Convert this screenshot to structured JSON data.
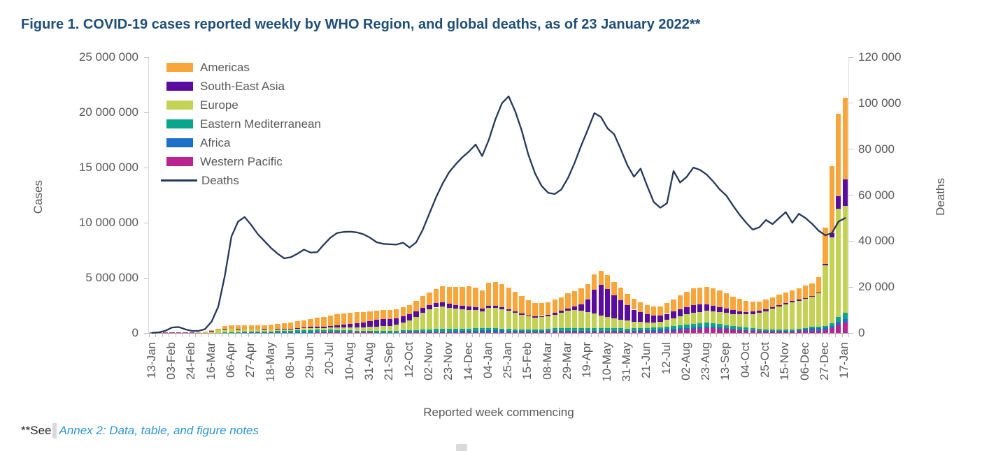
{
  "title": "Figure 1. COVID-19 cases reported weekly by WHO Region, and global deaths, as of 23 January 2022**",
  "footer": {
    "prefix": "**See",
    "link": "Annex 2: Data, table, and figure notes"
  },
  "colors": {
    "title_blue": "#1F4E79",
    "axis_text_gray": "#595959",
    "link_blue": "#2E96D0",
    "americas": "#F8A63C",
    "south_east_asia": "#5A0CA0",
    "europe": "#C3D255",
    "eastern_mediterranean": "#09A58C",
    "africa": "#1B6FC8",
    "western_pacific": "#BB2390",
    "deaths_line": "#24385B"
  },
  "chart_data": {
    "type": "combo-stacked-bar-line",
    "xlabel": "Reported week commencing",
    "ylabel_left": "Cases",
    "ylabel_right": "Deaths",
    "y_left": {
      "min": 0,
      "max": 25000000,
      "tick_labels": [
        "0",
        "5 000 000",
        "10 000 000",
        "15 000 000",
        "20 000 000",
        "25 000 000"
      ]
    },
    "y_right": {
      "min": 0,
      "max": 120000,
      "tick_labels": [
        "0",
        "20 000",
        "40 000",
        "60 000",
        "80 000",
        "100 000",
        "120 000"
      ]
    },
    "x_tick_labels": [
      "13-Jan",
      "03-Feb",
      "24-Feb",
      "16-Mar",
      "06-Apr",
      "27-Apr",
      "18-May",
      "08-Jun",
      "29-Jun",
      "20-Jul",
      "10-Aug",
      "31-Aug",
      "21-Sep",
      "12-Oct",
      "02-Nov",
      "23-Nov",
      "14-Dec",
      "04-Jan",
      "25-Jan",
      "15-Feb",
      "08-Mar",
      "29-Mar",
      "19-Apr",
      "10-May",
      "31-May",
      "21-Jun",
      "12-Jul",
      "02-Aug",
      "23-Aug",
      "13-Sep",
      "04-Oct",
      "25-Oct",
      "15-Nov",
      "06-Dec",
      "27-Dec",
      "17-Jan"
    ],
    "weeks_per_label": 3,
    "n_weeks": 106,
    "cases_unit": "millions of cases per week",
    "stack_order_bottom_to_top": [
      "western_pacific",
      "africa",
      "eastern_mediterranean",
      "europe",
      "south_east_asia",
      "americas"
    ],
    "series": [
      {
        "key": "americas",
        "name": "Americas",
        "color": "#F8A63C",
        "values": [
          0,
          0,
          0,
          0,
          0,
          0,
          0,
          0.01,
          0.02,
          0.05,
          0.12,
          0.25,
          0.3,
          0.33,
          0.35,
          0.36,
          0.35,
          0.37,
          0.4,
          0.45,
          0.5,
          0.55,
          0.6,
          0.65,
          0.73,
          0.8,
          0.88,
          0.95,
          1.0,
          1.02,
          1.05,
          1.0,
          0.95,
          0.9,
          0.85,
          0.82,
          0.8,
          0.82,
          0.85,
          0.88,
          0.95,
          1.05,
          1.15,
          1.3,
          1.45,
          1.55,
          1.65,
          1.75,
          1.85,
          1.8,
          1.7,
          2.1,
          2.15,
          2.1,
          1.95,
          1.75,
          1.55,
          1.35,
          1.2,
          1.15,
          1.15,
          1.2,
          1.25,
          1.35,
          1.4,
          1.45,
          1.4,
          1.35,
          1.3,
          1.25,
          1.2,
          1.15,
          1.05,
          0.95,
          0.9,
          0.85,
          0.8,
          0.85,
          0.95,
          1.1,
          1.25,
          1.4,
          1.5,
          1.55,
          1.55,
          1.55,
          1.5,
          1.4,
          1.25,
          1.1,
          1.0,
          0.9,
          0.85,
          0.85,
          0.85,
          0.9,
          0.95,
          1.0,
          1.05,
          1.1,
          1.15,
          1.4,
          3.3,
          6.1,
          7.5,
          7.4
        ]
      },
      {
        "key": "south_east_asia",
        "name": "South-East Asia",
        "color": "#5A0CA0",
        "values": [
          0,
          0,
          0,
          0,
          0,
          0,
          0,
          0,
          0,
          0.01,
          0.01,
          0.02,
          0.02,
          0.02,
          0.02,
          0.03,
          0.03,
          0.04,
          0.04,
          0.05,
          0.06,
          0.07,
          0.08,
          0.09,
          0.1,
          0.12,
          0.14,
          0.17,
          0.2,
          0.25,
          0.32,
          0.4,
          0.47,
          0.55,
          0.62,
          0.65,
          0.62,
          0.58,
          0.55,
          0.52,
          0.48,
          0.45,
          0.42,
          0.4,
          0.38,
          0.35,
          0.33,
          0.3,
          0.28,
          0.25,
          0.22,
          0.2,
          0.18,
          0.16,
          0.15,
          0.13,
          0.12,
          0.11,
          0.11,
          0.11,
          0.12,
          0.14,
          0.16,
          0.22,
          0.35,
          0.55,
          1.1,
          2.2,
          2.75,
          2.55,
          2.1,
          1.75,
          1.4,
          1.1,
          0.9,
          0.75,
          0.62,
          0.55,
          0.55,
          0.58,
          0.62,
          0.68,
          0.7,
          0.65,
          0.58,
          0.5,
          0.44,
          0.38,
          0.33,
          0.28,
          0.25,
          0.22,
          0.2,
          0.18,
          0.16,
          0.15,
          0.14,
          0.13,
          0.12,
          0.11,
          0.1,
          0.1,
          0.13,
          0.35,
          1.15,
          2.4
        ]
      },
      {
        "key": "europe",
        "name": "Europe",
        "color": "#C3D255",
        "values": [
          0,
          0,
          0,
          0,
          0,
          0,
          0,
          0.01,
          0.04,
          0.15,
          0.22,
          0.28,
          0.28,
          0.25,
          0.22,
          0.2,
          0.18,
          0.17,
          0.16,
          0.15,
          0.14,
          0.14,
          0.15,
          0.15,
          0.16,
          0.17,
          0.18,
          0.2,
          0.22,
          0.24,
          0.26,
          0.28,
          0.3,
          0.33,
          0.36,
          0.4,
          0.45,
          0.55,
          0.7,
          0.9,
          1.2,
          1.55,
          1.8,
          1.95,
          2.0,
          1.9,
          1.8,
          1.75,
          1.7,
          1.65,
          1.55,
          1.8,
          1.85,
          1.75,
          1.65,
          1.5,
          1.35,
          1.2,
          1.1,
          1.1,
          1.15,
          1.25,
          1.4,
          1.55,
          1.6,
          1.55,
          1.45,
          1.3,
          1.15,
          1.0,
          0.9,
          0.8,
          0.7,
          0.6,
          0.55,
          0.5,
          0.48,
          0.5,
          0.6,
          0.7,
          0.8,
          0.9,
          1.0,
          1.05,
          1.1,
          1.1,
          1.1,
          1.1,
          1.1,
          1.15,
          1.2,
          1.3,
          1.45,
          1.65,
          1.9,
          2.1,
          2.3,
          2.45,
          2.55,
          2.6,
          2.7,
          3.0,
          5.5,
          7.8,
          9.8,
          9.7
        ]
      },
      {
        "key": "eastern_mediterranean",
        "name": "Eastern Mediterranean",
        "color": "#09A58C",
        "values": [
          0,
          0,
          0,
          0,
          0,
          0,
          0,
          0,
          0,
          0.01,
          0.02,
          0.04,
          0.06,
          0.06,
          0.06,
          0.07,
          0.08,
          0.09,
          0.09,
          0.1,
          0.11,
          0.13,
          0.15,
          0.17,
          0.18,
          0.17,
          0.15,
          0.14,
          0.12,
          0.11,
          0.11,
          0.1,
          0.1,
          0.11,
          0.11,
          0.12,
          0.12,
          0.13,
          0.14,
          0.15,
          0.16,
          0.18,
          0.2,
          0.22,
          0.25,
          0.25,
          0.24,
          0.23,
          0.22,
          0.21,
          0.19,
          0.2,
          0.19,
          0.18,
          0.17,
          0.16,
          0.15,
          0.15,
          0.16,
          0.17,
          0.2,
          0.24,
          0.27,
          0.29,
          0.3,
          0.3,
          0.3,
          0.29,
          0.28,
          0.27,
          0.26,
          0.25,
          0.22,
          0.21,
          0.2,
          0.2,
          0.2,
          0.21,
          0.24,
          0.27,
          0.3,
          0.32,
          0.33,
          0.34,
          0.35,
          0.33,
          0.3,
          0.27,
          0.25,
          0.22,
          0.2,
          0.18,
          0.15,
          0.13,
          0.12,
          0.11,
          0.11,
          0.1,
          0.1,
          0.1,
          0.1,
          0.12,
          0.15,
          0.25,
          0.45,
          0.58
        ]
      },
      {
        "key": "africa",
        "name": "Africa",
        "color": "#1B6FC8",
        "values": [
          0,
          0,
          0,
          0,
          0,
          0,
          0,
          0,
          0,
          0,
          0,
          0.01,
          0.01,
          0.01,
          0.02,
          0.02,
          0.02,
          0.03,
          0.03,
          0.04,
          0.04,
          0.05,
          0.06,
          0.07,
          0.07,
          0.08,
          0.09,
          0.1,
          0.1,
          0.09,
          0.08,
          0.07,
          0.06,
          0.06,
          0.05,
          0.05,
          0.05,
          0.05,
          0.05,
          0.06,
          0.06,
          0.07,
          0.07,
          0.08,
          0.08,
          0.09,
          0.1,
          0.11,
          0.12,
          0.14,
          0.16,
          0.19,
          0.18,
          0.17,
          0.14,
          0.12,
          0.1,
          0.08,
          0.07,
          0.08,
          0.07,
          0.07,
          0.06,
          0.06,
          0.06,
          0.06,
          0.06,
          0.06,
          0.06,
          0.06,
          0.07,
          0.08,
          0.09,
          0.11,
          0.13,
          0.14,
          0.16,
          0.17,
          0.18,
          0.18,
          0.17,
          0.16,
          0.15,
          0.14,
          0.13,
          0.12,
          0.11,
          0.09,
          0.08,
          0.07,
          0.06,
          0.05,
          0.04,
          0.04,
          0.03,
          0.03,
          0.03,
          0.04,
          0.08,
          0.18,
          0.26,
          0.25,
          0.22,
          0.18,
          0.25,
          0.3
        ]
      },
      {
        "key": "western_pacific",
        "name": "Western Pacific",
        "color": "#BB2390",
        "values": [
          0.01,
          0.02,
          0.04,
          0.05,
          0.08,
          0.04,
          0.02,
          0.01,
          0.01,
          0.01,
          0.01,
          0.02,
          0.02,
          0.02,
          0.02,
          0.02,
          0.02,
          0.02,
          0.02,
          0.02,
          0.02,
          0.02,
          0.03,
          0.03,
          0.03,
          0.04,
          0.04,
          0.05,
          0.05,
          0.05,
          0.04,
          0.04,
          0.04,
          0.04,
          0.04,
          0.04,
          0.04,
          0.04,
          0.05,
          0.05,
          0.05,
          0.05,
          0.06,
          0.06,
          0.06,
          0.06,
          0.06,
          0.06,
          0.07,
          0.07,
          0.07,
          0.07,
          0.07,
          0.06,
          0.06,
          0.06,
          0.06,
          0.06,
          0.07,
          0.09,
          0.1,
          0.11,
          0.11,
          0.11,
          0.11,
          0.11,
          0.1,
          0.1,
          0.1,
          0.1,
          0.1,
          0.1,
          0.1,
          0.1,
          0.11,
          0.11,
          0.12,
          0.14,
          0.17,
          0.21,
          0.25,
          0.3,
          0.35,
          0.4,
          0.45,
          0.43,
          0.4,
          0.36,
          0.3,
          0.25,
          0.22,
          0.2,
          0.18,
          0.16,
          0.16,
          0.16,
          0.17,
          0.17,
          0.18,
          0.19,
          0.2,
          0.22,
          0.28,
          0.45,
          0.75,
          0.95
        ]
      }
    ],
    "line": {
      "key": "deaths",
      "name": "Deaths",
      "color": "#24385B",
      "unit": "deaths per week",
      "values": [
        100,
        300,
        1000,
        2400,
        2600,
        1600,
        900,
        900,
        1700,
        5000,
        11500,
        25000,
        42000,
        48500,
        50500,
        47000,
        43000,
        40000,
        37000,
        34500,
        32500,
        33000,
        34500,
        36300,
        35000,
        35200,
        38500,
        41500,
        43500,
        44000,
        44100,
        43800,
        43000,
        41500,
        39500,
        38800,
        38600,
        38500,
        39300,
        37200,
        39500,
        45000,
        52000,
        59000,
        65000,
        70000,
        73500,
        76500,
        79000,
        82000,
        77000,
        84000,
        93000,
        100000,
        103000,
        96500,
        88000,
        77500,
        69500,
        64000,
        61000,
        60500,
        62500,
        67500,
        74000,
        81500,
        88500,
        95700,
        94000,
        89000,
        86500,
        80000,
        73000,
        68000,
        71500,
        64000,
        57000,
        54500,
        56500,
        70500,
        65500,
        68000,
        72000,
        71000,
        69000,
        66000,
        62500,
        59800,
        55500,
        51500,
        48000,
        45000,
        46000,
        49200,
        47400,
        50000,
        52600,
        48000,
        51900,
        50000,
        47500,
        44500,
        42500,
        43500,
        48500,
        50000
      ]
    },
    "legend_entries": [
      "Americas",
      "South-East Asia",
      "Europe",
      "Eastern Mediterranean",
      "Africa",
      "Western Pacific",
      "Deaths"
    ]
  }
}
